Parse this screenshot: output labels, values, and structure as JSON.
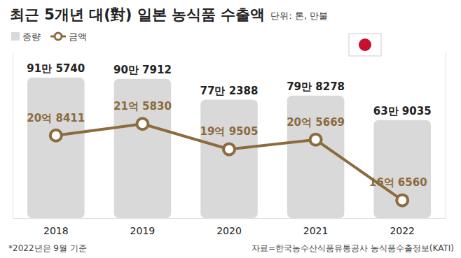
{
  "chart_data": {
    "type": "bar",
    "title": "최근 5개년 대(對) 일본 농식품 수출액",
    "subtitle": "단위: 톤, 만불",
    "categories": [
      "2018",
      "2019",
      "2020",
      "2021",
      "2022"
    ],
    "series": [
      {
        "name": "중량",
        "type": "bar",
        "color": "#d9d9d9",
        "values": [
          915740,
          907912,
          772388,
          798278,
          639035
        ],
        "value_labels": [
          "91만 5740",
          "90만 7912",
          "77만 2388",
          "79만 8278",
          "63만 9035"
        ]
      },
      {
        "name": "금액",
        "type": "line",
        "axis": "y2",
        "color": "#8c6b3f",
        "marker": "circle",
        "line_style": "solid",
        "values": [
          208411,
          215830,
          199505,
          205669,
          166560
        ],
        "value_labels": [
          "20억 8411",
          "21억 5830",
          "19억 9505",
          "20억 5669",
          "16억 6560"
        ]
      }
    ],
    "ylim": [
      0,
      1080000
    ],
    "y2lim": [
      155000,
      262000
    ],
    "tick_labels": "x",
    "data_labels": true,
    "legend": "top-left",
    "annotations": [
      "*2022년은 9월 기준"
    ],
    "source": "자료=한국농수산식품유통공사 농식품수출정보(KATI)"
  }
}
